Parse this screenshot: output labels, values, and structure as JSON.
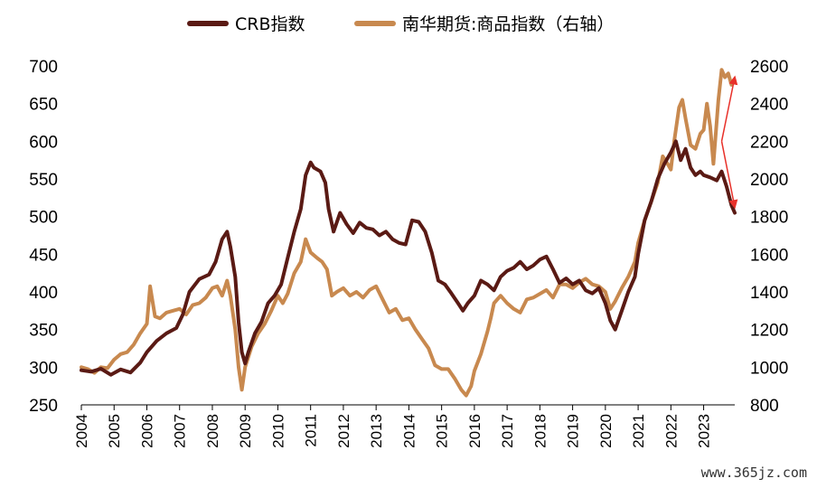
{
  "chart_data": {
    "type": "line",
    "title": "",
    "xlabel": "",
    "ylabel_left": "",
    "ylabel_right": "",
    "x_categories": [
      "2004",
      "2005",
      "2006",
      "2007",
      "2008",
      "2009",
      "2010",
      "2011",
      "2012",
      "2013",
      "2014",
      "2015",
      "2016",
      "2017",
      "2018",
      "2019",
      "2020",
      "2021",
      "2022",
      "2023"
    ],
    "xlim": [
      2004.0,
      2023.95
    ],
    "ylim_left": [
      250,
      700
    ],
    "ylim_right": [
      800,
      2600
    ],
    "yticks_left": [
      250,
      300,
      350,
      400,
      450,
      500,
      550,
      600,
      650,
      700
    ],
    "yticks_right": [
      800,
      1000,
      1200,
      1400,
      1600,
      1800,
      2000,
      2200,
      2400,
      2600
    ],
    "legend_position": "top-center",
    "series": [
      {
        "name": "CRB指数",
        "axis": "left",
        "color": "#5a1a14",
        "points": [
          [
            2004.0,
            296
          ],
          [
            2004.3,
            294
          ],
          [
            2004.6,
            298
          ],
          [
            2004.9,
            290
          ],
          [
            2005.2,
            297
          ],
          [
            2005.5,
            293
          ],
          [
            2005.8,
            306
          ],
          [
            2006.0,
            320
          ],
          [
            2006.3,
            335
          ],
          [
            2006.6,
            345
          ],
          [
            2006.9,
            352
          ],
          [
            2007.1,
            370
          ],
          [
            2007.3,
            400
          ],
          [
            2007.6,
            417
          ],
          [
            2007.9,
            423
          ],
          [
            2008.1,
            440
          ],
          [
            2008.3,
            470
          ],
          [
            2008.45,
            480
          ],
          [
            2008.55,
            460
          ],
          [
            2008.7,
            420
          ],
          [
            2008.8,
            360
          ],
          [
            2008.9,
            320
          ],
          [
            2009.0,
            305
          ],
          [
            2009.1,
            320
          ],
          [
            2009.3,
            345
          ],
          [
            2009.5,
            360
          ],
          [
            2009.7,
            385
          ],
          [
            2009.9,
            395
          ],
          [
            2010.1,
            410
          ],
          [
            2010.3,
            445
          ],
          [
            2010.5,
            480
          ],
          [
            2010.7,
            510
          ],
          [
            2010.85,
            555
          ],
          [
            2011.0,
            572
          ],
          [
            2011.1,
            565
          ],
          [
            2011.3,
            560
          ],
          [
            2011.45,
            545
          ],
          [
            2011.55,
            510
          ],
          [
            2011.7,
            480
          ],
          [
            2011.9,
            505
          ],
          [
            2012.1,
            490
          ],
          [
            2012.3,
            478
          ],
          [
            2012.5,
            492
          ],
          [
            2012.7,
            485
          ],
          [
            2012.9,
            483
          ],
          [
            2013.1,
            475
          ],
          [
            2013.3,
            480
          ],
          [
            2013.5,
            470
          ],
          [
            2013.7,
            465
          ],
          [
            2013.9,
            463
          ],
          [
            2014.1,
            495
          ],
          [
            2014.3,
            493
          ],
          [
            2014.5,
            480
          ],
          [
            2014.7,
            452
          ],
          [
            2014.9,
            415
          ],
          [
            2015.1,
            410
          ],
          [
            2015.3,
            398
          ],
          [
            2015.5,
            385
          ],
          [
            2015.65,
            375
          ],
          [
            2015.8,
            385
          ],
          [
            2016.0,
            395
          ],
          [
            2016.2,
            415
          ],
          [
            2016.4,
            410
          ],
          [
            2016.6,
            402
          ],
          [
            2016.8,
            420
          ],
          [
            2017.0,
            428
          ],
          [
            2017.2,
            432
          ],
          [
            2017.4,
            440
          ],
          [
            2017.6,
            430
          ],
          [
            2017.8,
            435
          ],
          [
            2018.0,
            443
          ],
          [
            2018.2,
            447
          ],
          [
            2018.4,
            430
          ],
          [
            2018.6,
            412
          ],
          [
            2018.8,
            418
          ],
          [
            2019.0,
            410
          ],
          [
            2019.2,
            415
          ],
          [
            2019.4,
            402
          ],
          [
            2019.6,
            398
          ],
          [
            2019.8,
            405
          ],
          [
            2020.0,
            385
          ],
          [
            2020.15,
            362
          ],
          [
            2020.3,
            350
          ],
          [
            2020.5,
            375
          ],
          [
            2020.7,
            400
          ],
          [
            2020.9,
            420
          ],
          [
            2021.0,
            450
          ],
          [
            2021.2,
            495
          ],
          [
            2021.4,
            520
          ],
          [
            2021.6,
            550
          ],
          [
            2021.8,
            570
          ],
          [
            2022.0,
            585
          ],
          [
            2022.15,
            600
          ],
          [
            2022.3,
            575
          ],
          [
            2022.45,
            590
          ],
          [
            2022.6,
            565
          ],
          [
            2022.75,
            555
          ],
          [
            2022.9,
            560
          ],
          [
            2023.0,
            555
          ],
          [
            2023.2,
            552
          ],
          [
            2023.4,
            548
          ],
          [
            2023.55,
            560
          ],
          [
            2023.7,
            540
          ],
          [
            2023.85,
            515
          ],
          [
            2023.95,
            505
          ]
        ]
      },
      {
        "name": "南华期货:商品指数（右轴）",
        "axis": "right",
        "color": "#c8894f",
        "points": [
          [
            2004.0,
            1000
          ],
          [
            2004.2,
            990
          ],
          [
            2004.4,
            970
          ],
          [
            2004.6,
            1000
          ],
          [
            2004.8,
            995
          ],
          [
            2005.0,
            1040
          ],
          [
            2005.2,
            1070
          ],
          [
            2005.4,
            1080
          ],
          [
            2005.6,
            1120
          ],
          [
            2005.8,
            1180
          ],
          [
            2006.0,
            1230
          ],
          [
            2006.1,
            1430
          ],
          [
            2006.25,
            1270
          ],
          [
            2006.4,
            1260
          ],
          [
            2006.6,
            1290
          ],
          [
            2006.8,
            1300
          ],
          [
            2007.0,
            1310
          ],
          [
            2007.2,
            1280
          ],
          [
            2007.4,
            1330
          ],
          [
            2007.6,
            1340
          ],
          [
            2007.8,
            1370
          ],
          [
            2008.0,
            1420
          ],
          [
            2008.15,
            1430
          ],
          [
            2008.3,
            1380
          ],
          [
            2008.45,
            1460
          ],
          [
            2008.55,
            1380
          ],
          [
            2008.7,
            1200
          ],
          [
            2008.8,
            1000
          ],
          [
            2008.9,
            880
          ],
          [
            2009.0,
            1000
          ],
          [
            2009.2,
            1110
          ],
          [
            2009.4,
            1180
          ],
          [
            2009.6,
            1230
          ],
          [
            2009.8,
            1300
          ],
          [
            2010.0,
            1380
          ],
          [
            2010.15,
            1340
          ],
          [
            2010.3,
            1390
          ],
          [
            2010.5,
            1500
          ],
          [
            2010.7,
            1560
          ],
          [
            2010.85,
            1680
          ],
          [
            2011.0,
            1610
          ],
          [
            2011.2,
            1580
          ],
          [
            2011.35,
            1560
          ],
          [
            2011.5,
            1520
          ],
          [
            2011.65,
            1380
          ],
          [
            2011.8,
            1400
          ],
          [
            2012.0,
            1420
          ],
          [
            2012.2,
            1380
          ],
          [
            2012.4,
            1400
          ],
          [
            2012.6,
            1370
          ],
          [
            2012.8,
            1410
          ],
          [
            2013.0,
            1430
          ],
          [
            2013.2,
            1360
          ],
          [
            2013.4,
            1290
          ],
          [
            2013.6,
            1310
          ],
          [
            2013.8,
            1250
          ],
          [
            2014.0,
            1260
          ],
          [
            2014.2,
            1200
          ],
          [
            2014.4,
            1150
          ],
          [
            2014.6,
            1100
          ],
          [
            2014.8,
            1010
          ],
          [
            2015.0,
            990
          ],
          [
            2015.2,
            990
          ],
          [
            2015.4,
            940
          ],
          [
            2015.6,
            880
          ],
          [
            2015.75,
            850
          ],
          [
            2015.9,
            900
          ],
          [
            2016.0,
            980
          ],
          [
            2016.2,
            1070
          ],
          [
            2016.4,
            1190
          ],
          [
            2016.5,
            1260
          ],
          [
            2016.6,
            1340
          ],
          [
            2016.8,
            1380
          ],
          [
            2017.0,
            1340
          ],
          [
            2017.2,
            1310
          ],
          [
            2017.4,
            1290
          ],
          [
            2017.6,
            1360
          ],
          [
            2017.8,
            1370
          ],
          [
            2018.0,
            1390
          ],
          [
            2018.2,
            1410
          ],
          [
            2018.4,
            1370
          ],
          [
            2018.6,
            1440
          ],
          [
            2018.8,
            1440
          ],
          [
            2019.0,
            1420
          ],
          [
            2019.2,
            1450
          ],
          [
            2019.4,
            1470
          ],
          [
            2019.6,
            1440
          ],
          [
            2019.8,
            1430
          ],
          [
            2020.0,
            1400
          ],
          [
            2020.15,
            1310
          ],
          [
            2020.3,
            1350
          ],
          [
            2020.5,
            1420
          ],
          [
            2020.7,
            1480
          ],
          [
            2020.9,
            1560
          ],
          [
            2021.0,
            1660
          ],
          [
            2021.2,
            1780
          ],
          [
            2021.4,
            1880
          ],
          [
            2021.6,
            1980
          ],
          [
            2021.75,
            2120
          ],
          [
            2021.9,
            2080
          ],
          [
            2022.0,
            2050
          ],
          [
            2022.1,
            2200
          ],
          [
            2022.25,
            2380
          ],
          [
            2022.35,
            2420
          ],
          [
            2022.45,
            2320
          ],
          [
            2022.6,
            2180
          ],
          [
            2022.75,
            2160
          ],
          [
            2022.9,
            2240
          ],
          [
            2023.0,
            2260
          ],
          [
            2023.1,
            2400
          ],
          [
            2023.2,
            2280
          ],
          [
            2023.3,
            2080
          ],
          [
            2023.45,
            2420
          ],
          [
            2023.55,
            2580
          ],
          [
            2023.65,
            2540
          ],
          [
            2023.75,
            2560
          ],
          [
            2023.85,
            2500
          ],
          [
            2023.95,
            2520
          ]
        ]
      }
    ],
    "annotations": [
      {
        "type": "arrow",
        "color": "#e8312a",
        "from": [
          2023.55,
          2200
        ],
        "to": [
          2023.95,
          2540
        ],
        "axis": "right"
      },
      {
        "type": "arrow",
        "color": "#e8312a",
        "from": [
          2023.55,
          2200
        ],
        "to": [
          2023.95,
          1850
        ],
        "axis": "right"
      }
    ]
  },
  "watermark": "www.365jz.com"
}
